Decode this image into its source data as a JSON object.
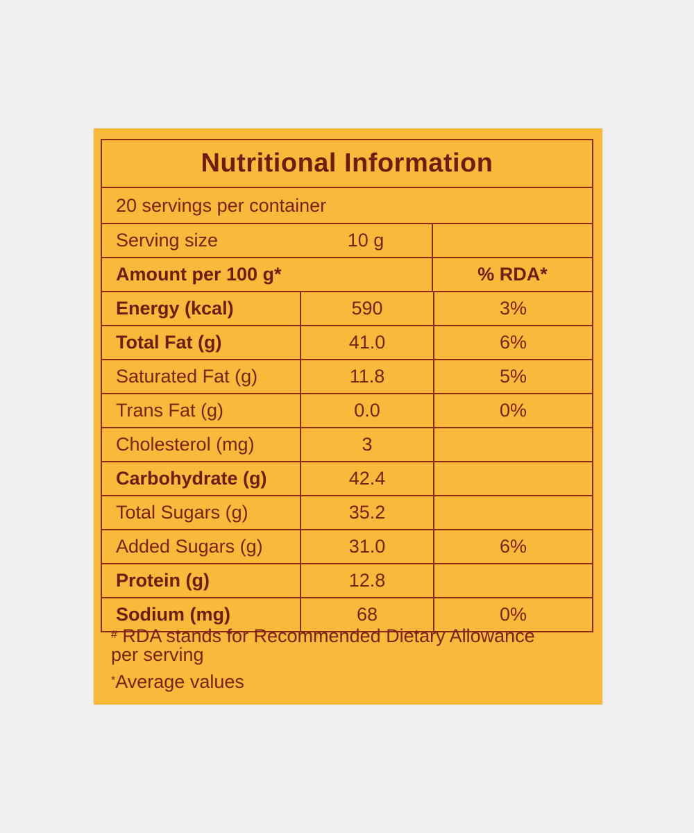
{
  "panel": {
    "title": "Nutritional Information",
    "servings_per_container": "20 servings per container",
    "serving_size_label": "Serving size",
    "serving_size_value": "10 g",
    "amount_label": "Amount per 100 g*",
    "rda_header": "% RDA*",
    "rows": [
      {
        "name": "Energy (kcal)",
        "amount": "590",
        "rda": "3%",
        "bold": true
      },
      {
        "name": "Total Fat (g)",
        "amount": "41.0",
        "rda": "6%",
        "bold": true
      },
      {
        "name": "Saturated Fat (g)",
        "amount": "11.8",
        "rda": "5%",
        "bold": false
      },
      {
        "name": "Trans Fat (g)",
        "amount": "0.0",
        "rda": "0%",
        "bold": false
      },
      {
        "name": "Cholesterol (mg)",
        "amount": "3",
        "rda": "",
        "bold": false
      },
      {
        "name": "Carbohydrate (g)",
        "amount": "42.4",
        "rda": "",
        "bold": true
      },
      {
        "name": "Total Sugars (g)",
        "amount": "35.2",
        "rda": "",
        "bold": false
      },
      {
        "name": "Added Sugars (g)",
        "amount": "31.0",
        "rda": "6%",
        "bold": false
      },
      {
        "name": "Protein (g)",
        "amount": "12.8",
        "rda": "",
        "bold": true
      },
      {
        "name": "Sodium (mg)",
        "amount": "68",
        "rda": "0%",
        "bold": true
      }
    ]
  },
  "footnotes": {
    "mark1": "#",
    "rda_note": " RDA stands for Recommended Dietary Allowance",
    "rda_note_cont": "per serving",
    "mark2": "*",
    "average_note": "Average values"
  },
  "colors": {
    "background": "#efefef",
    "label": "#f9b93a",
    "ink": "#7a2212"
  }
}
